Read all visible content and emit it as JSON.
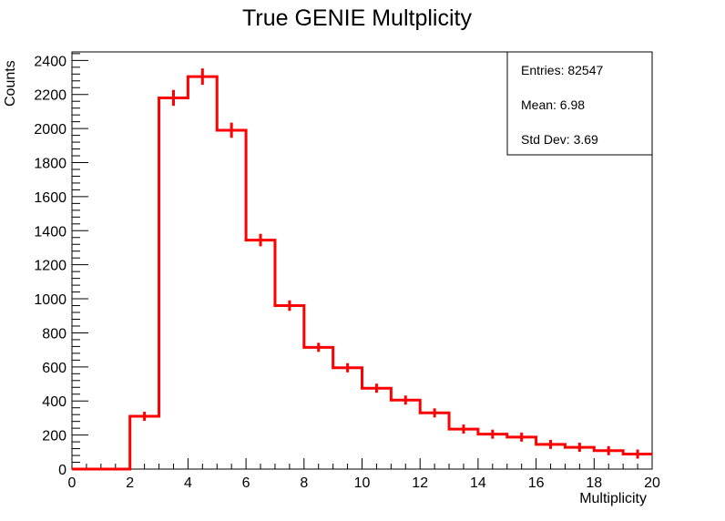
{
  "chart_data": {
    "type": "histogram",
    "title": "True GENIE Multplicity",
    "xlabel": "Multiplicity",
    "ylabel": "Counts",
    "xlim": [
      0,
      20
    ],
    "ylim": [
      0,
      2450
    ],
    "xticks": [
      0,
      2,
      4,
      6,
      8,
      10,
      12,
      14,
      16,
      18,
      20
    ],
    "yticks": [
      0,
      200,
      400,
      600,
      800,
      1000,
      1200,
      1400,
      1600,
      1800,
      2000,
      2200,
      2400
    ],
    "bin_edges": [
      0,
      1,
      2,
      3,
      4,
      5,
      6,
      7,
      8,
      9,
      10,
      11,
      12,
      13,
      14,
      15,
      16,
      17,
      18,
      19,
      20
    ],
    "counts": [
      0,
      0,
      310,
      2180,
      2305,
      1990,
      1345,
      960,
      715,
      595,
      475,
      405,
      330,
      235,
      205,
      188,
      145,
      128,
      108,
      88
    ],
    "line_color": "#ff0000",
    "stats": {
      "entries": "Entries: 82547",
      "mean": "Mean: 6.98",
      "std_dev": "Std Dev: 3.69"
    }
  }
}
